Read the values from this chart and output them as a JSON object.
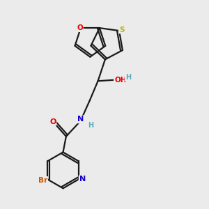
{
  "background_color": "#ebebeb",
  "bond_color": "#1a1a1a",
  "bond_width": 1.6,
  "atom_colors": {
    "O": "#e60000",
    "N": "#1400cc",
    "S": "#b8b800",
    "Br": "#cc5500",
    "H": "#5aacbe",
    "C": "#1a1a1a"
  },
  "figsize": [
    3.0,
    3.0
  ],
  "dpi": 100
}
